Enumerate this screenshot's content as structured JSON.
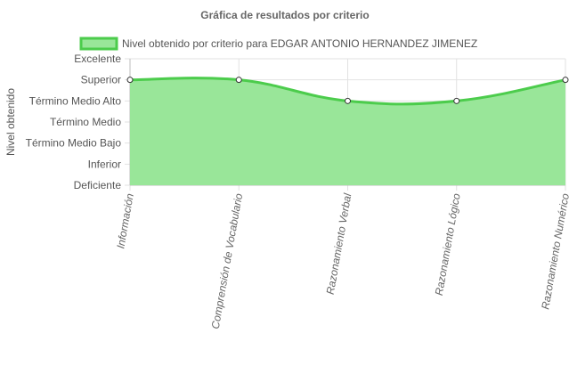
{
  "chart_data": {
    "type": "area",
    "title": "Gráfica de resultados por criterio",
    "ylabel": "Nivel obtenido",
    "xlabel": "",
    "y_levels": [
      "Excelente",
      "Superior",
      "Término Medio Alto",
      "Término Medio",
      "Término Medio Bajo",
      "Inferior",
      "Deficiente"
    ],
    "categories": [
      "Información",
      "Comprensión de Vocabulario",
      "Razonamiento Verbal",
      "Razonamiento Lógico",
      "Razonamiento Numérico"
    ],
    "series": [
      {
        "name": "Nivel obtenido por criterio para EDGAR ANTONIO HERNANDEZ JIMENEZ",
        "values": [
          "Superior",
          "Superior",
          "Término Medio Alto",
          "Término Medio Alto",
          "Superior"
        ]
      }
    ],
    "legend_position": "top",
    "grid": true,
    "colors": {
      "fill": "#99e699",
      "line": "#4ccc4c",
      "point_fill": "#ffffff",
      "point_stroke": "#333333",
      "grid": "#e2e2e2"
    }
  }
}
